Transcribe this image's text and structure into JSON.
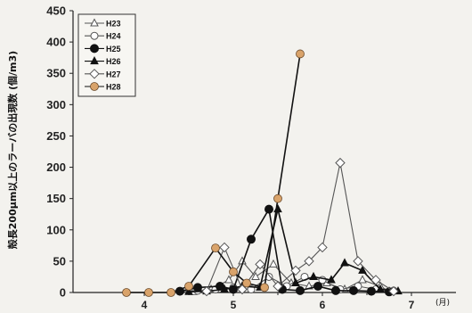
{
  "chart_data": {
    "type": "line",
    "ylabel": "殻長200μm以上のラーバの出現数 (個/m3)",
    "xlabel": "",
    "x_unit_label": "(月)",
    "ylim": [
      0,
      450
    ],
    "y_ticks": [
      "0",
      "50",
      "100",
      "150",
      "200",
      "250",
      "300",
      "350",
      "400",
      "450"
    ],
    "xlim": [
      3.2,
      7.5
    ],
    "x_ticks": [
      {
        "value": 4,
        "label": "4"
      },
      {
        "value": 5,
        "label": "5"
      },
      {
        "value": 6,
        "label": "6"
      },
      {
        "value": 7,
        "label": "7"
      }
    ],
    "legend_position": "top-left",
    "grid": false,
    "series": [
      {
        "name": "H23",
        "marker": "triangle-open",
        "color": "#555555",
        "points": [
          [
            4.55,
            1
          ],
          [
            4.75,
            5
          ],
          [
            4.95,
            20
          ],
          [
            5.1,
            50
          ],
          [
            5.25,
            25
          ],
          [
            5.45,
            45
          ],
          [
            5.65,
            15
          ],
          [
            5.85,
            10
          ],
          [
            6.05,
            15
          ],
          [
            6.25,
            5
          ],
          [
            6.45,
            20
          ],
          [
            6.65,
            10
          ],
          [
            6.75,
            2
          ]
        ]
      },
      {
        "name": "H24",
        "marker": "circle-open",
        "color": "#555555",
        "points": [
          [
            4.4,
            2
          ],
          [
            4.6,
            3
          ],
          [
            4.8,
            5
          ],
          [
            5.0,
            8
          ],
          [
            5.2,
            5
          ],
          [
            5.4,
            25
          ],
          [
            5.6,
            10
          ],
          [
            5.8,
            25
          ],
          [
            6.0,
            20
          ],
          [
            6.2,
            5
          ],
          [
            6.4,
            10
          ],
          [
            6.6,
            5
          ],
          [
            6.8,
            3
          ]
        ]
      },
      {
        "name": "H25",
        "marker": "circle-filled",
        "color": "#111111",
        "points": [
          [
            4.4,
            2
          ],
          [
            4.6,
            8
          ],
          [
            4.85,
            10
          ],
          [
            5.0,
            5
          ],
          [
            5.2,
            85
          ],
          [
            5.4,
            133
          ],
          [
            5.55,
            5
          ],
          [
            5.75,
            3
          ],
          [
            5.95,
            10
          ],
          [
            6.15,
            3
          ],
          [
            6.35,
            3
          ],
          [
            6.55,
            2
          ],
          [
            6.75,
            1
          ]
        ]
      },
      {
        "name": "H26",
        "marker": "triangle-filled",
        "color": "#111111",
        "points": [
          [
            4.5,
            1
          ],
          [
            4.7,
            2
          ],
          [
            4.9,
            5
          ],
          [
            5.1,
            10
          ],
          [
            5.3,
            8
          ],
          [
            5.5,
            133
          ],
          [
            5.7,
            15
          ],
          [
            5.9,
            25
          ],
          [
            6.1,
            20
          ],
          [
            6.25,
            47
          ],
          [
            6.45,
            35
          ],
          [
            6.65,
            5
          ],
          [
            6.85,
            2
          ]
        ]
      },
      {
        "name": "H27",
        "marker": "diamond-open",
        "color": "#555555",
        "points": [
          [
            4.7,
            2
          ],
          [
            4.9,
            72
          ],
          [
            5.1,
            5
          ],
          [
            5.3,
            45
          ],
          [
            5.5,
            10
          ],
          [
            5.7,
            35
          ],
          [
            5.85,
            50
          ],
          [
            6.0,
            72
          ],
          [
            6.2,
            207
          ],
          [
            6.4,
            50
          ],
          [
            6.6,
            20
          ],
          [
            6.8,
            2
          ]
        ]
      },
      {
        "name": "H28",
        "marker": "circle-orange",
        "color": "#111111",
        "fill": "#d9a36a",
        "points": [
          [
            3.8,
            0
          ],
          [
            4.05,
            0
          ],
          [
            4.3,
            0
          ],
          [
            4.5,
            10
          ],
          [
            4.8,
            71
          ],
          [
            5.0,
            33
          ],
          [
            5.15,
            15
          ],
          [
            5.35,
            8
          ],
          [
            5.5,
            150
          ],
          [
            5.75,
            381
          ]
        ]
      }
    ]
  }
}
